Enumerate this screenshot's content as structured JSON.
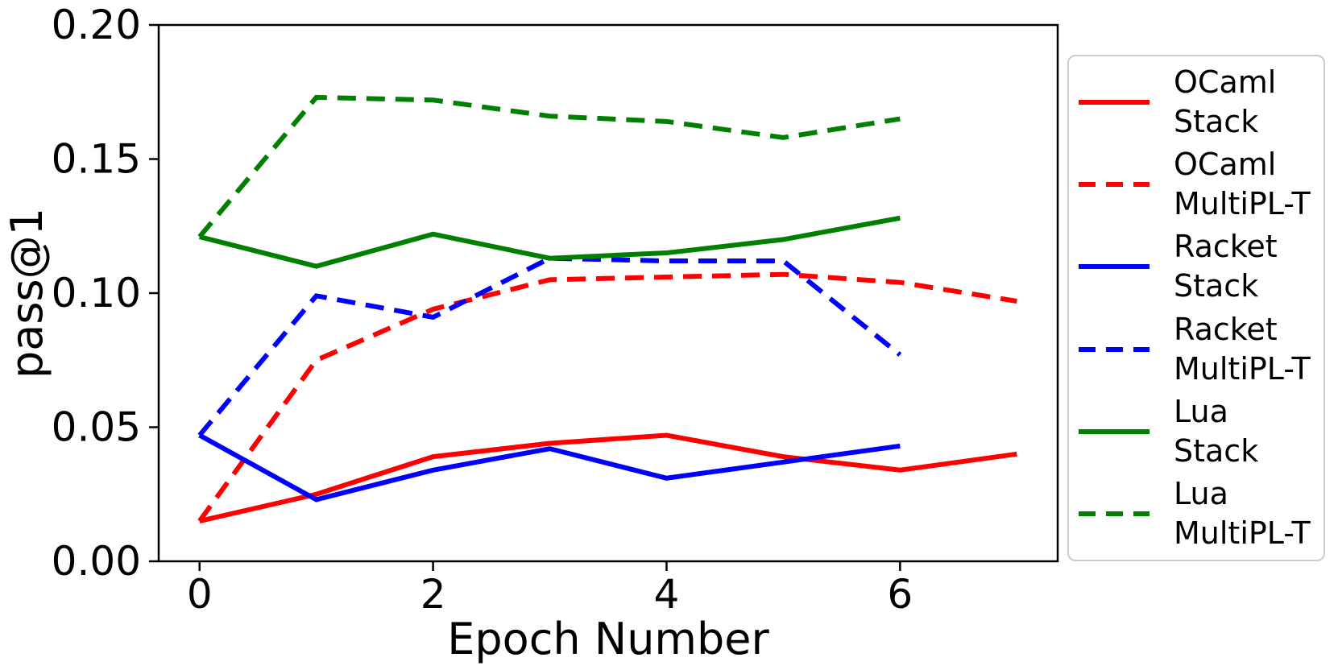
{
  "figure": {
    "background": "#ffffff",
    "text_color": "#000000",
    "legend_border_color": "#cccccc"
  },
  "chart_data": {
    "type": "line",
    "title": "",
    "xlabel": "Epoch Number",
    "ylabel": "pass@1",
    "xlim": [
      -0.35,
      7.35
    ],
    "ylim": [
      0.0,
      0.2
    ],
    "xticks": [
      0,
      2,
      4,
      6
    ],
    "yticks": [
      0.0,
      0.05,
      0.1,
      0.15,
      0.2
    ],
    "ytick_decimals": 2,
    "grid": false,
    "legend_position": "outside-right",
    "series": [
      {
        "name": "OCaml Stack",
        "label_lines": [
          "OCaml",
          "Stack"
        ],
        "color": "#ff0000",
        "style": "solid",
        "x": [
          0,
          1,
          2,
          3,
          4,
          5,
          6,
          7
        ],
        "values": [
          0.015,
          0.025,
          0.039,
          0.044,
          0.047,
          0.039,
          0.034,
          0.04
        ]
      },
      {
        "name": "OCaml MultiPL-T",
        "label_lines": [
          "OCaml",
          "MultiPL-T"
        ],
        "color": "#ff0000",
        "style": "dashed",
        "x": [
          0,
          1,
          2,
          3,
          4,
          5,
          6,
          7
        ],
        "values": [
          0.015,
          0.075,
          0.094,
          0.105,
          0.106,
          0.107,
          0.104,
          0.097
        ]
      },
      {
        "name": "Racket Stack",
        "label_lines": [
          "Racket",
          "Stack"
        ],
        "color": "#0000ff",
        "style": "solid",
        "x": [
          0,
          1,
          2,
          3,
          4,
          5,
          6
        ],
        "values": [
          0.047,
          0.023,
          0.034,
          0.042,
          0.031,
          0.037,
          0.043
        ]
      },
      {
        "name": "Racket MultiPL-T",
        "label_lines": [
          "Racket",
          "MultiPL-T"
        ],
        "color": "#0000ff",
        "style": "dashed",
        "x": [
          0,
          1,
          2,
          3,
          4,
          5,
          6
        ],
        "values": [
          0.047,
          0.099,
          0.091,
          0.113,
          0.112,
          0.112,
          0.077
        ]
      },
      {
        "name": "Lua Stack",
        "label_lines": [
          "Lua",
          "Stack"
        ],
        "color": "#008000",
        "style": "solid",
        "x": [
          0,
          1,
          2,
          3,
          4,
          5,
          6
        ],
        "values": [
          0.121,
          0.11,
          0.122,
          0.113,
          0.115,
          0.12,
          0.128
        ]
      },
      {
        "name": "Lua MultiPL-T",
        "label_lines": [
          "Lua",
          "MultiPL-T"
        ],
        "color": "#008000",
        "style": "dashed",
        "x": [
          0,
          1,
          2,
          3,
          4,
          5,
          6
        ],
        "values": [
          0.121,
          0.173,
          0.172,
          0.166,
          0.164,
          0.158,
          0.165
        ]
      }
    ]
  }
}
